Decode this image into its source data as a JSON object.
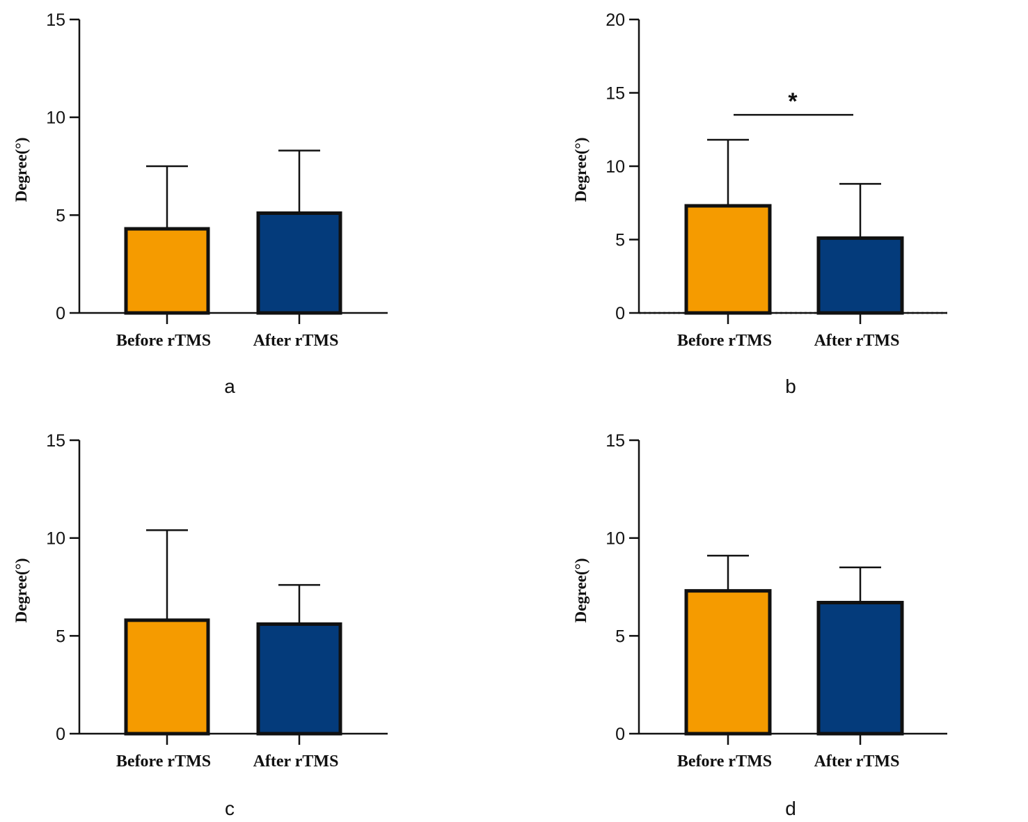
{
  "colors": {
    "before": "#f59b00",
    "after": "#043b7b",
    "axis": "#111111"
  },
  "chart_data": [
    {
      "type": "bar",
      "panel_label": "a",
      "ylabel": "Degree(°)",
      "categories": [
        "Before rTMS",
        "After rTMS"
      ],
      "values": [
        4.3,
        5.1
      ],
      "error": [
        3.2,
        3.2
      ],
      "ylim": [
        0,
        15
      ],
      "yticks": [
        0,
        5,
        10,
        15
      ],
      "tick_labels": [
        "0",
        "5",
        "10",
        "15"
      ],
      "significance": null,
      "dotted_baseline": false
    },
    {
      "type": "bar",
      "panel_label": "b",
      "ylabel": "Degree(°)",
      "categories": [
        "Before rTMS",
        "After rTMS"
      ],
      "values": [
        7.3,
        5.1
      ],
      "error": [
        4.5,
        3.7
      ],
      "ylim": [
        0,
        20
      ],
      "yticks": [
        0,
        5,
        10,
        15,
        20
      ],
      "tick_labels": [
        "0",
        "5",
        "10",
        "15",
        "20"
      ],
      "significance": {
        "label": "*",
        "y": 13.5
      },
      "dotted_baseline": true
    },
    {
      "type": "bar",
      "panel_label": "c",
      "ylabel": "Degree(°)",
      "categories": [
        "Before rTMS",
        "After rTMS"
      ],
      "values": [
        5.8,
        5.6
      ],
      "error": [
        4.6,
        2.0
      ],
      "ylim": [
        0,
        15
      ],
      "yticks": [
        0,
        5,
        10,
        15
      ],
      "tick_labels": [
        "0",
        "5",
        "10",
        "15"
      ],
      "significance": null,
      "dotted_baseline": false
    },
    {
      "type": "bar",
      "panel_label": "d",
      "ylabel": "Degree(°)",
      "categories": [
        "Before rTMS",
        "After rTMS"
      ],
      "values": [
        7.3,
        6.7
      ],
      "error": [
        1.8,
        1.8
      ],
      "ylim": [
        0,
        15
      ],
      "yticks": [
        0,
        5,
        10,
        15
      ],
      "tick_labels": [
        "0",
        "5",
        "10",
        "15"
      ],
      "significance": null,
      "dotted_baseline": false
    }
  ]
}
